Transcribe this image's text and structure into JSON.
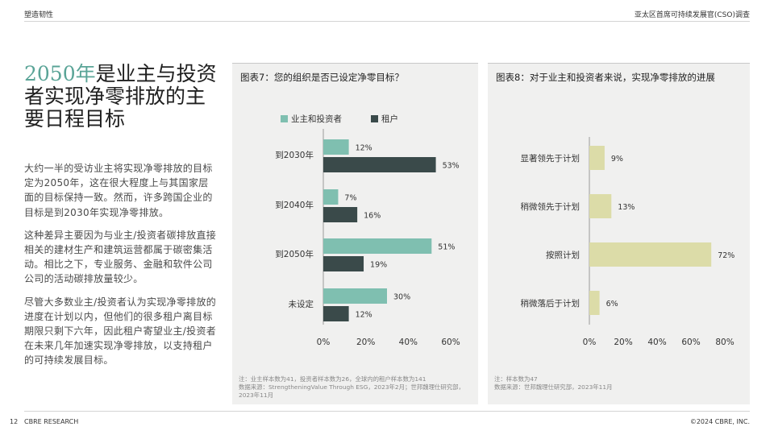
{
  "header": {
    "left": "塑造韧性",
    "right": "亚太区首席可持续发展官(CSO)调查"
  },
  "title": {
    "accent": "2050年",
    "rest": "是业主与投资者实现净零排放的主要日程目标"
  },
  "body": {
    "paragraphs": [
      "大约一半的受访业主将实现净零排放的目标定为2050年，这在很大程度上与其国家层面的目标保持一致。然而，许多跨国企业的目标是到2030年实现净零排放。",
      "这种差异主要因为与业主/投资者碳排放直接相关的建材生产和建筑运营都属于碳密集活动。相比之下，专业服务、金融和软件公司公司的活动碳排放量较少。",
      "尽管大多数业主/投资者认为实现净零排放的进度在计划以内，但他们的很多租户离目标期限只剩下六年，因此租户寄望业主/投资者在未来几年加速实现净零排放，以支持租户的可持续发展目标。"
    ]
  },
  "chart_data": [
    {
      "type": "bar",
      "orientation": "horizontal",
      "title": "图表7：您的组织是否已设定净零目标？",
      "categories": [
        "到2030年",
        "到2040年",
        "到2050年",
        "未设定"
      ],
      "series": [
        {
          "name": "业主和投资者",
          "values": [
            12,
            7,
            51,
            30
          ],
          "labels": [
            "12%",
            "7%",
            "51%",
            "30%"
          ],
          "color": "#7fbfb0"
        },
        {
          "name": "租户",
          "values": [
            53,
            16,
            19,
            12
          ],
          "labels": [
            "53%",
            "16%",
            "19%",
            "12%"
          ],
          "color": "#3a4a4a"
        }
      ],
      "xlim": [
        0,
        60
      ],
      "xticks": [
        "0%",
        "20%",
        "40%",
        "60%"
      ],
      "legend": "top-left",
      "grid": false,
      "note": "注：业主样本数为41，投资者样本数为26，全球内的租户样本数为141\n数据来源：StrengtheningValue Through ESG，2023年2月；世邦魏理仕研究部，2023年11月"
    },
    {
      "type": "bar",
      "orientation": "horizontal",
      "title": "图表8：对于业主和投资者来说，实现净零排放的进展",
      "categories": [
        "显著领先于计划",
        "稍微领先于计划",
        "按照计划",
        "稍微落后于计划"
      ],
      "series": [
        {
          "values": [
            9,
            13,
            72,
            6
          ],
          "labels": [
            "9%",
            "13%",
            "72%",
            "6%"
          ],
          "color": "#dcdca8"
        }
      ],
      "xlim": [
        0,
        80
      ],
      "xticks": [
        "0%",
        "20%",
        "40%",
        "60%",
        "80%"
      ],
      "grid": false,
      "note": "注：样本数为47\n数据来源：世邦魏理仕研究部，2023年11月"
    }
  ],
  "footer": {
    "page": "12",
    "brand": "CBRE RESEARCH",
    "copyright": "©2024 CBRE, INC."
  }
}
